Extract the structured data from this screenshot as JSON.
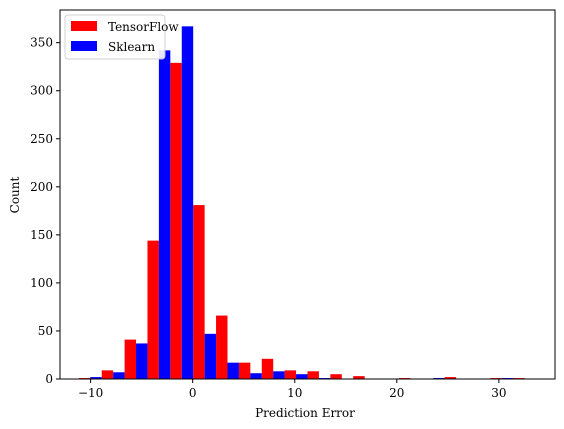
{
  "chart_data": {
    "type": "bar",
    "xlabel": "Prediction Error",
    "ylabel": "Count",
    "xlim": [
      -13.0,
      35.5
    ],
    "ylim": [
      0,
      384
    ],
    "xticks": [
      -10,
      0,
      10,
      20,
      30
    ],
    "yticks": [
      0,
      50,
      100,
      150,
      200,
      250,
      300,
      350
    ],
    "xtick_labels": [
      "−10",
      "0",
      "10",
      "20",
      "30"
    ],
    "ytick_labels": [
      "0",
      "50",
      "100",
      "150",
      "200",
      "250",
      "300",
      "350"
    ],
    "grid": false,
    "legend_position": "top-left",
    "bin_width": 2.24,
    "bin_starts": [
      -11.15,
      -8.91,
      -6.67,
      -4.43,
      -2.19,
      0.05,
      2.29,
      4.53,
      6.77,
      9.01,
      11.25,
      13.49,
      15.73,
      17.97,
      20.21,
      22.45,
      24.69,
      26.93,
      29.17,
      31.41
    ],
    "series": [
      {
        "name": "TensorFlow",
        "color": "#ff0000",
        "values": [
          1,
          9,
          41,
          144,
          329,
          181,
          66,
          17,
          21,
          9,
          8,
          5,
          3,
          0,
          1,
          0,
          2,
          0,
          1,
          1
        ]
      },
      {
        "name": "Sklearn",
        "color": "#0000ff",
        "values": [
          2,
          7,
          37,
          342,
          367,
          47,
          17,
          6,
          8,
          5,
          1,
          0,
          0,
          0,
          0,
          1,
          0,
          0,
          1,
          0
        ]
      }
    ]
  }
}
